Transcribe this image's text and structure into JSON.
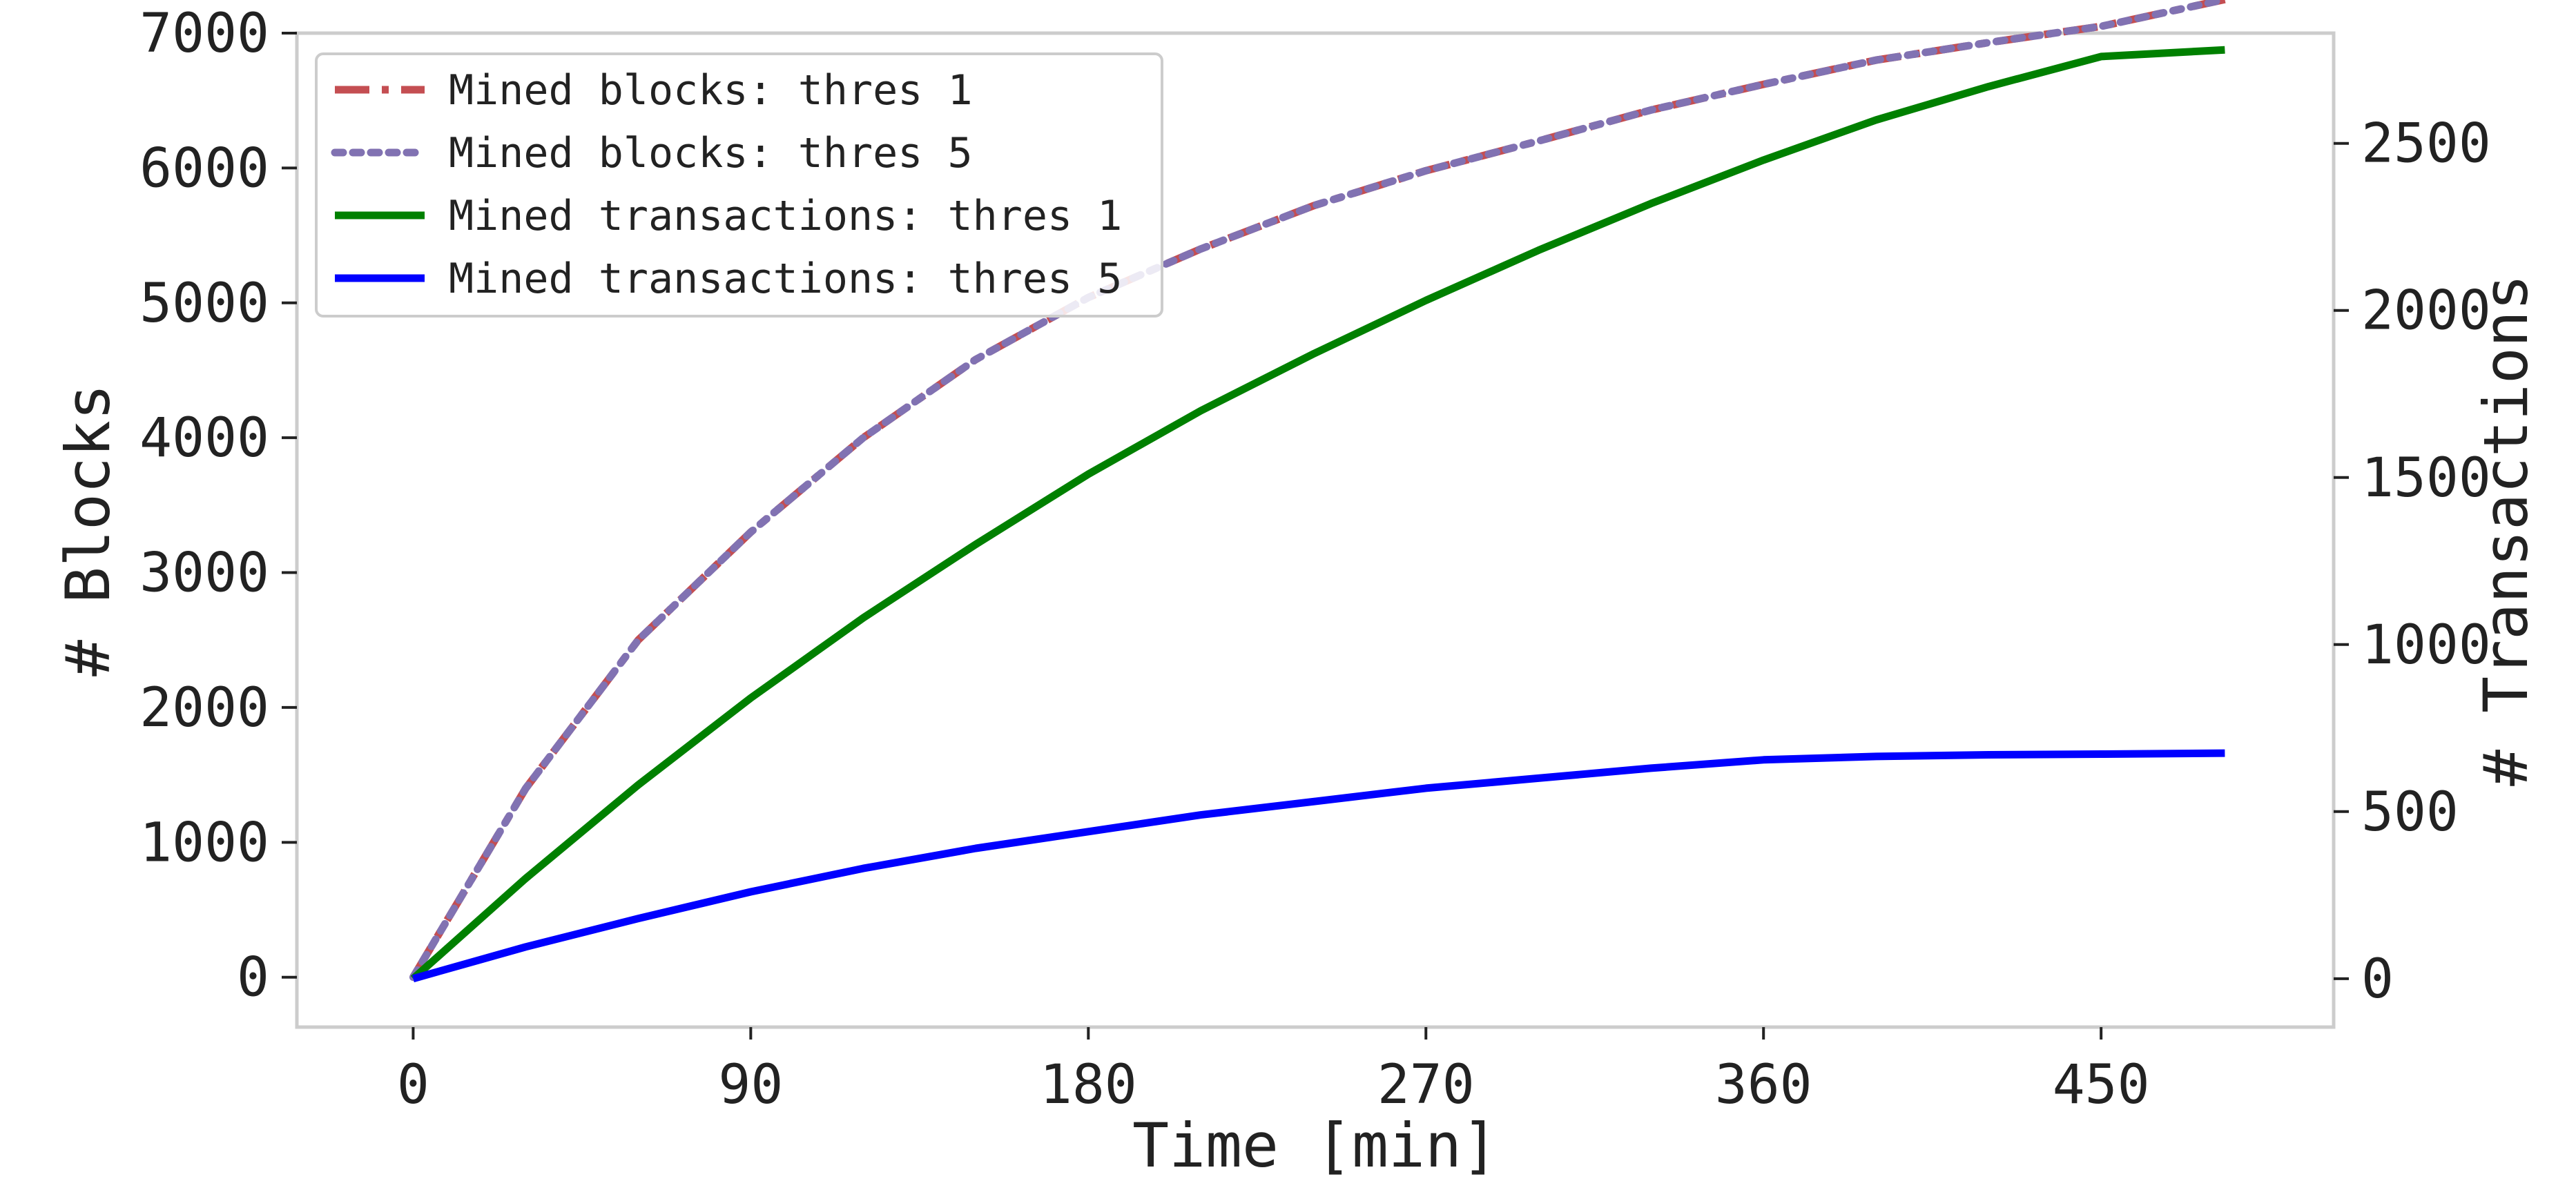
{
  "chart_data": {
    "type": "line",
    "xlabel": "Time [min]",
    "ylabel": "# Blocks",
    "ylabel_right": "# Transactions",
    "xlim": [
      -31,
      512
    ],
    "ylim": [
      -370,
      7000
    ],
    "ylim_right": [
      -145,
      2830
    ],
    "x_ticks": [
      0,
      90,
      180,
      270,
      360,
      450
    ],
    "x_tick_labels": [
      "0",
      "90",
      "180",
      "270",
      "360",
      "450"
    ],
    "y_ticks": [
      0,
      1000,
      2000,
      3000,
      4000,
      5000,
      6000,
      7000
    ],
    "y_tick_labels": [
      "0",
      "1000",
      "2000",
      "3000",
      "4000",
      "5000",
      "6000",
      "7000"
    ],
    "y_ticks_right": [
      0,
      500,
      1000,
      1500,
      2000,
      2500
    ],
    "y_tick_labels_right": [
      "0",
      "500",
      "1000",
      "1500",
      "2000",
      "2500"
    ],
    "grid": false,
    "legend_position": "top-left",
    "x": [
      0,
      30,
      60,
      90,
      120,
      150,
      180,
      210,
      240,
      270,
      300,
      330,
      360,
      390,
      420,
      450,
      483
    ],
    "series": [
      {
        "name": "Mined blocks: thres 1",
        "axis": "left",
        "color": "#c44e52",
        "style": "dashdot",
        "values": [
          0,
          1400,
          2500,
          3300,
          4000,
          4580,
          5040,
          5400,
          5720,
          5980,
          6200,
          6430,
          6620,
          6800,
          6930,
          7050,
          7250
        ]
      },
      {
        "name": "Mined blocks: thres 5",
        "axis": "left",
        "color": "#8172b2",
        "style": "dotted",
        "values": [
          0,
          1400,
          2500,
          3300,
          4000,
          4580,
          5040,
          5400,
          5720,
          5980,
          6200,
          6430,
          6620,
          6800,
          6930,
          7050,
          7250
        ]
      },
      {
        "name": "Mined transactions: thres 1",
        "axis": "right",
        "color": "#008000",
        "style": "solid",
        "values": [
          0,
          300,
          580,
          840,
          1080,
          1300,
          1510,
          1700,
          1870,
          2030,
          2180,
          2320,
          2450,
          2570,
          2670,
          2760,
          2780
        ]
      },
      {
        "name": "Mined transactions: thres 5",
        "axis": "right",
        "color": "#0000ff",
        "style": "solid",
        "values": [
          0,
          95,
          180,
          260,
          330,
          390,
          440,
          490,
          530,
          570,
          600,
          630,
          655,
          665,
          670,
          672,
          675
        ]
      }
    ]
  }
}
